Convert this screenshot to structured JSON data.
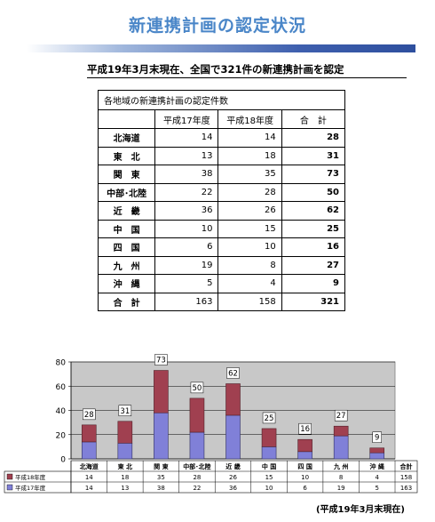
{
  "page": {
    "title": "新連携計画の認定状況",
    "subtitle": "平成19年3月末現在、全国で321件の新連携計画を認定",
    "note": "(平成19年3月末現在)"
  },
  "table": {
    "caption": "各地域の新連携計画の認定件数",
    "headers": [
      "平成17年度",
      "平成18年度",
      "合　計"
    ],
    "rows": [
      {
        "region": "北海道",
        "h17": "14",
        "h18": "14",
        "total": "28"
      },
      {
        "region": "東　北",
        "h17": "13",
        "h18": "18",
        "total": "31"
      },
      {
        "region": "関　東",
        "h17": "38",
        "h18": "35",
        "total": "73"
      },
      {
        "region": "中部･北陸",
        "h17": "22",
        "h18": "28",
        "total": "50"
      },
      {
        "region": "近　畿",
        "h17": "36",
        "h18": "26",
        "total": "62"
      },
      {
        "region": "中　国",
        "h17": "10",
        "h18": "15",
        "total": "25"
      },
      {
        "region": "四　国",
        "h17": "6",
        "h18": "10",
        "total": "16"
      },
      {
        "region": "九　州",
        "h17": "19",
        "h18": "8",
        "total": "27"
      },
      {
        "region": "沖　縄",
        "h17": "5",
        "h18": "4",
        "total": "9"
      }
    ],
    "total_row": {
      "region": "合　計",
      "h17": "163",
      "h18": "158",
      "total": "321"
    }
  },
  "chart_data": {
    "type": "bar",
    "stacked": true,
    "categories": [
      "北海道",
      "東 北",
      "関 東",
      "中部･北陸",
      "近 畿",
      "中 国",
      "四 国",
      "九 州",
      "沖 縄"
    ],
    "series": [
      {
        "name": "平成17年度",
        "values": [
          14,
          13,
          38,
          22,
          36,
          10,
          6,
          19,
          5
        ],
        "color": "#8080d8"
      },
      {
        "name": "平成18年度",
        "values": [
          14,
          18,
          35,
          28,
          26,
          15,
          10,
          8,
          4
        ],
        "color": "#a04050"
      }
    ],
    "totals": [
      28,
      31,
      73,
      50,
      62,
      25,
      16,
      27,
      9
    ],
    "yticks": [
      0,
      20,
      40,
      60,
      80
    ],
    "ylim": [
      0,
      80
    ],
    "grid": true,
    "plot_background": "#c8c8c8",
    "table_total_label": "合計",
    "series_totals": {
      "平成18年度": 158,
      "平成17年度": 163
    }
  }
}
